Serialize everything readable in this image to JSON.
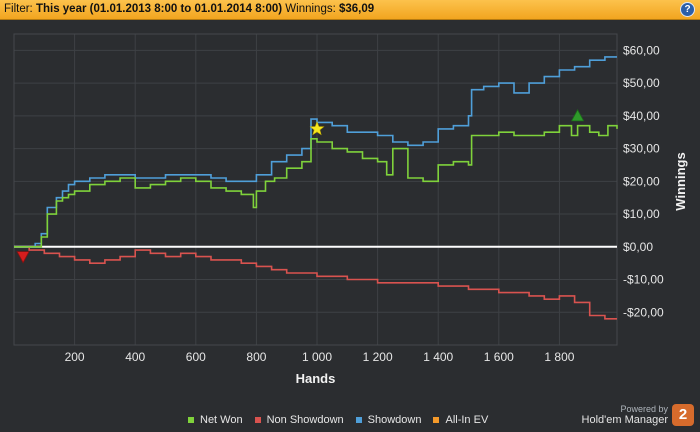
{
  "filter": {
    "label": "Filter:",
    "range": "This year (01.01.2013 8:00 to 01.01.2014 8:00)",
    "winnings_label": "Winnings:",
    "winnings_value": "$36,09",
    "help_glyph": "?",
    "help_icon": "help-icon"
  },
  "colors": {
    "net_won": "#7fd23b",
    "non_showdown": "#d9534f",
    "showdown": "#4f9fd9",
    "all_in_ev": "#f59a2a",
    "zero_line": "#ffffff",
    "grid": "#3e4145"
  },
  "legend": {
    "net_won": "Net Won",
    "non_showdown": "Non Showdown",
    "showdown": "Showdown",
    "all_in_ev": "All-In EV"
  },
  "branding": {
    "powered": "Powered by",
    "product": "Hold'em Manager",
    "logo": "2"
  },
  "chart_data": {
    "type": "line",
    "xlabel": "Hands",
    "ylabel": "Winnings",
    "xlim": [
      0,
      1990
    ],
    "ylim": [
      -30,
      65
    ],
    "xticks": [
      200,
      400,
      600,
      800,
      1000,
      1200,
      1400,
      1600,
      1800
    ],
    "xtick_labels": [
      "200",
      "400",
      "600",
      "800",
      "1 000",
      "1 200",
      "1 400",
      "1 600",
      "1 800"
    ],
    "yticks": [
      -20,
      -10,
      0,
      10,
      20,
      30,
      40,
      50,
      60
    ],
    "ytick_labels": [
      "-$20,00",
      "-$10,00",
      "$0,00",
      "$10,00",
      "$20,00",
      "$30,00",
      "$40,00",
      "$50,00",
      "$60,00"
    ],
    "grid": true,
    "legend_position": "bottom",
    "series": [
      {
        "name": "Net Won",
        "x": [
          0,
          70,
          90,
          110,
          140,
          160,
          180,
          200,
          250,
          300,
          350,
          400,
          450,
          500,
          550,
          600,
          650,
          700,
          750,
          790,
          800,
          830,
          860,
          900,
          950,
          980,
          1000,
          1050,
          1100,
          1150,
          1200,
          1230,
          1250,
          1300,
          1350,
          1400,
          1450,
          1500,
          1510,
          1550,
          1600,
          1650,
          1700,
          1750,
          1800,
          1840,
          1860,
          1900,
          1930,
          1960,
          1990
        ],
        "y": [
          0,
          0,
          3,
          10,
          14,
          15,
          16,
          17,
          19,
          20,
          21,
          18,
          19,
          20,
          21,
          20,
          18,
          17,
          16,
          12,
          17,
          20,
          21,
          24,
          26,
          33,
          32,
          30,
          29,
          27,
          26,
          22,
          30,
          21,
          20,
          25,
          26,
          25,
          34,
          34,
          35,
          34,
          34,
          35,
          37,
          34,
          37,
          35,
          34,
          37,
          36
        ]
      },
      {
        "name": "Non Showdown",
        "x": [
          0,
          50,
          100,
          150,
          200,
          250,
          300,
          350,
          400,
          450,
          500,
          550,
          600,
          650,
          700,
          750,
          800,
          850,
          900,
          950,
          1000,
          1100,
          1200,
          1300,
          1400,
          1500,
          1600,
          1700,
          1750,
          1800,
          1850,
          1900,
          1950,
          1990
        ],
        "y": [
          0,
          -1,
          -2,
          -3,
          -4,
          -5,
          -4,
          -3,
          -1,
          -2,
          -3,
          -2,
          -3,
          -4,
          -4,
          -5,
          -6,
          -7,
          -8,
          -8,
          -9,
          -10,
          -11,
          -11,
          -12,
          -13,
          -14,
          -15,
          -16,
          -15,
          -17,
          -21,
          -22,
          -22
        ]
      },
      {
        "name": "Showdown",
        "x": [
          0,
          70,
          90,
          110,
          140,
          160,
          180,
          200,
          250,
          300,
          350,
          400,
          450,
          500,
          550,
          600,
          650,
          700,
          750,
          800,
          850,
          900,
          950,
          980,
          1000,
          1050,
          1100,
          1150,
          1200,
          1250,
          1300,
          1350,
          1400,
          1450,
          1500,
          1510,
          1550,
          1600,
          1650,
          1700,
          1750,
          1800,
          1850,
          1900,
          1950,
          1990
        ],
        "y": [
          0,
          1,
          4,
          12,
          15,
          17,
          19,
          20,
          21,
          22,
          22,
          21,
          21,
          22,
          22,
          22,
          21,
          20,
          20,
          22,
          26,
          28,
          30,
          39,
          38,
          37,
          35,
          35,
          34,
          32,
          31,
          32,
          36,
          37,
          40,
          48,
          49,
          50,
          47,
          50,
          52,
          54,
          55,
          57,
          58,
          58
        ]
      }
    ],
    "markers": [
      {
        "type": "star",
        "x": 1000,
        "y": 36
      },
      {
        "type": "triangle-up",
        "x": 1860,
        "y": 40
      },
      {
        "type": "triangle-down",
        "x": 30,
        "y": -3
      }
    ]
  }
}
